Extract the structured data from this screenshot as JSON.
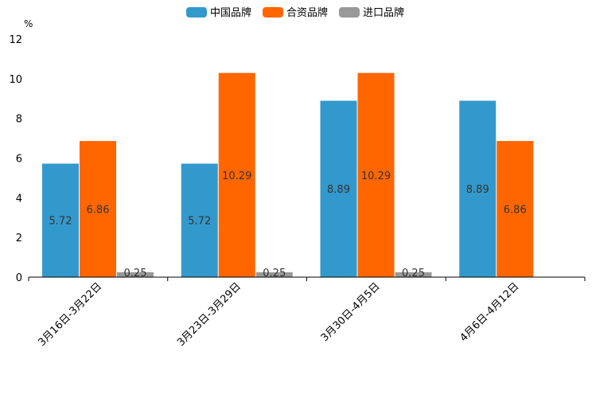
{
  "chart_data": {
    "type": "bar",
    "title": "",
    "xlabel": "",
    "ylabel": "%",
    "ylim": [
      0,
      12
    ],
    "yticks": [
      0,
      2,
      4,
      6,
      8,
      10,
      12
    ],
    "grid": false,
    "legend_position": "top-center",
    "categories": [
      "3月16日-3月22日",
      "3月23日-3月29日",
      "3月30日-4月5日",
      "4月6日-4月12日"
    ],
    "series": [
      {
        "name": "中国品牌",
        "color": "#3399cc",
        "values": [
          5.72,
          5.72,
          8.89,
          8.89
        ],
        "labels": [
          "5.72",
          "5.72",
          "8.89",
          "8.89"
        ]
      },
      {
        "name": "合资品牌",
        "color": "#ff6600",
        "values": [
          6.86,
          10.29,
          10.29,
          6.86
        ],
        "labels": [
          "6.86",
          "10.29",
          "10.29",
          "6.86"
        ]
      },
      {
        "name": "进口品牌",
        "color": "#999999",
        "values": [
          0.25,
          0.25,
          0.25,
          null
        ],
        "labels": [
          "0.25",
          "0.25",
          "0.25",
          null
        ]
      }
    ]
  }
}
